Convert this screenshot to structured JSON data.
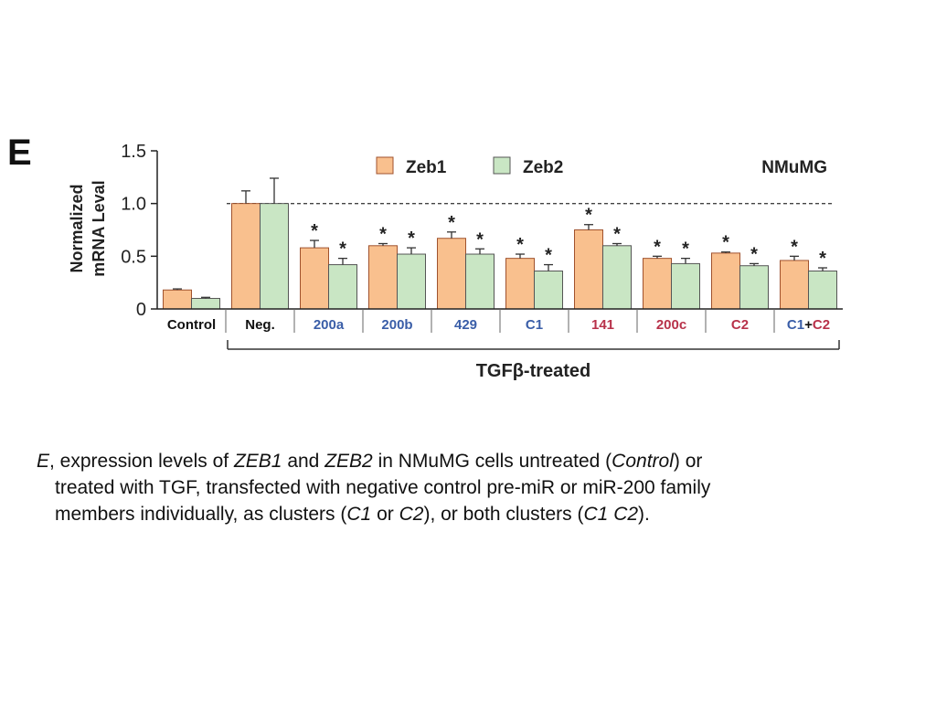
{
  "panel_label": "E",
  "chart_data": {
    "type": "bar",
    "title": "",
    "ylabel_line1": "Normalized",
    "ylabel_line2": "mRNA Leval",
    "xlabel": "TGFβ-treated",
    "corner_label": "NMuMG",
    "ylim": [
      0,
      1.5
    ],
    "yticks": [
      0,
      0.5,
      1.0,
      1.5
    ],
    "ytick_labels": [
      "0",
      "0.5",
      "1.0",
      "1.5"
    ],
    "reference_line": 1.0,
    "legend_position": "top-center",
    "categories": [
      "Control",
      "Neg.",
      "200a",
      "200b",
      "429",
      "C1",
      "141",
      "200c",
      "C2",
      "C1+C2"
    ],
    "category_label_colors": [
      "#111111",
      "#111111",
      "#3a5ea8",
      "#3a5ea8",
      "#3a5ea8",
      "#3a5ea8",
      "#b8324a",
      "#b8324a",
      "#b8324a",
      "mixed"
    ],
    "last_label_parts": [
      {
        "text": "C1",
        "color": "#3a5ea8"
      },
      {
        "text": "+",
        "color": "#111111"
      },
      {
        "text": "C2",
        "color": "#b8324a"
      }
    ],
    "series": [
      {
        "name": "Zeb1",
        "color": "#f9c08e",
        "values": [
          0.18,
          1.0,
          0.58,
          0.6,
          0.67,
          0.48,
          0.75,
          0.48,
          0.53,
          0.46
        ],
        "errors": [
          0.01,
          0.12,
          0.07,
          0.02,
          0.06,
          0.04,
          0.05,
          0.02,
          0.01,
          0.04
        ],
        "significant": [
          false,
          false,
          true,
          true,
          true,
          true,
          true,
          true,
          true,
          true
        ]
      },
      {
        "name": "Zeb2",
        "color": "#c9e6c4",
        "values": [
          0.1,
          1.0,
          0.42,
          0.52,
          0.52,
          0.36,
          0.6,
          0.43,
          0.41,
          0.36
        ],
        "errors": [
          0.01,
          0.24,
          0.06,
          0.06,
          0.05,
          0.06,
          0.02,
          0.05,
          0.02,
          0.03
        ],
        "significant": [
          false,
          false,
          true,
          true,
          true,
          true,
          true,
          true,
          true,
          true
        ]
      }
    ],
    "significance_marker": "*",
    "bar_edge_color": "#a0522d"
  },
  "caption": {
    "line1": [
      {
        "t": "E",
        "i": true
      },
      {
        "t": ", expression levels of ",
        "i": false
      },
      {
        "t": "ZEB1",
        "i": true
      },
      {
        "t": " and ",
        "i": false
      },
      {
        "t": "ZEB2",
        "i": true
      },
      {
        "t": " in NMuMG cells untreated (",
        "i": false
      },
      {
        "t": "Control",
        "i": true
      },
      {
        "t": ") or",
        "i": false
      }
    ],
    "line2": [
      {
        "t": "treated with TGF, transfected with negative control pre-miR or miR-200 family",
        "i": false
      }
    ],
    "line3": [
      {
        "t": "members individually, as clusters (",
        "i": false
      },
      {
        "t": "C1",
        "i": true
      },
      {
        "t": " or ",
        "i": false
      },
      {
        "t": "C2",
        "i": true
      },
      {
        "t": "), or both clusters (",
        "i": false
      },
      {
        "t": "C1  C2",
        "i": true
      },
      {
        "t": ").",
        "i": false
      }
    ]
  }
}
